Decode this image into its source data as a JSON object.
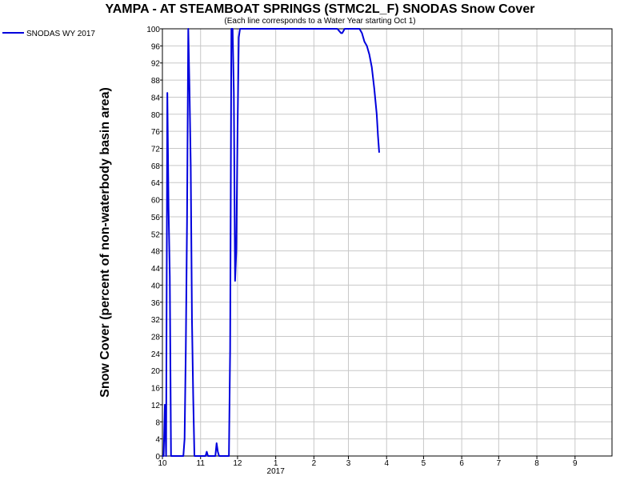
{
  "chart_data": {
    "type": "line",
    "title": "YAMPA - AT STEAMBOAT SPRINGS (STMC2L_F) SNODAS Snow Cover",
    "subtitle": "(Each line corresponds to a Water Year starting Oct 1)",
    "ylabel": "Snow Cover (percent of non-waterbody basin area)",
    "xlabel": "",
    "year_label": "2017",
    "ylim": [
      0,
      100
    ],
    "y_ticks": [
      0,
      4,
      8,
      12,
      16,
      20,
      24,
      28,
      32,
      36,
      40,
      44,
      48,
      52,
      56,
      60,
      64,
      68,
      72,
      76,
      80,
      84,
      88,
      92,
      96,
      100
    ],
    "xlim": [
      "2016-10-01",
      "2017-10-01"
    ],
    "x_ticks": [
      {
        "date": "2016-10-01",
        "label": "10"
      },
      {
        "date": "2016-11-01",
        "label": "11"
      },
      {
        "date": "2016-12-01",
        "label": "12"
      },
      {
        "date": "2017-01-01",
        "label": "1"
      },
      {
        "date": "2017-02-01",
        "label": "2"
      },
      {
        "date": "2017-03-01",
        "label": "3"
      },
      {
        "date": "2017-04-01",
        "label": "4"
      },
      {
        "date": "2017-05-01",
        "label": "5"
      },
      {
        "date": "2017-06-01",
        "label": "6"
      },
      {
        "date": "2017-07-01",
        "label": "7"
      },
      {
        "date": "2017-08-01",
        "label": "8"
      },
      {
        "date": "2017-09-01",
        "label": "9"
      }
    ],
    "grid": true,
    "legend_position": "top-left",
    "colors": {
      "series": "#0000dd",
      "grid": "#c8c8c8",
      "axis": "#000000"
    },
    "series": [
      {
        "name": "SNODAS WY 2017",
        "points": [
          [
            "2016-10-01",
            0
          ],
          [
            "2016-10-02",
            0
          ],
          [
            "2016-10-03",
            12
          ],
          [
            "2016-10-04",
            0
          ],
          [
            "2016-10-05",
            85
          ],
          [
            "2016-10-06",
            58
          ],
          [
            "2016-10-07",
            42
          ],
          [
            "2016-10-08",
            0
          ],
          [
            "2016-10-09",
            0
          ],
          [
            "2016-10-10",
            0
          ],
          [
            "2016-10-11",
            0
          ],
          [
            "2016-10-12",
            0
          ],
          [
            "2016-10-13",
            0
          ],
          [
            "2016-10-14",
            0
          ],
          [
            "2016-10-15",
            0
          ],
          [
            "2016-10-16",
            0
          ],
          [
            "2016-10-17",
            0
          ],
          [
            "2016-10-18",
            0
          ],
          [
            "2016-10-19",
            4
          ],
          [
            "2016-10-20",
            25
          ],
          [
            "2016-10-21",
            55
          ],
          [
            "2016-10-22",
            100
          ],
          [
            "2016-10-23",
            86
          ],
          [
            "2016-10-24",
            68
          ],
          [
            "2016-10-25",
            32
          ],
          [
            "2016-10-26",
            14
          ],
          [
            "2016-10-27",
            0
          ],
          [
            "2016-10-28",
            0
          ],
          [
            "2016-11-05",
            0
          ],
          [
            "2016-11-06",
            1
          ],
          [
            "2016-11-07",
            0
          ],
          [
            "2016-11-08",
            0
          ],
          [
            "2016-11-09",
            0
          ],
          [
            "2016-11-10",
            0
          ],
          [
            "2016-11-11",
            0
          ],
          [
            "2016-11-12",
            0
          ],
          [
            "2016-11-13",
            0
          ],
          [
            "2016-11-14",
            3
          ],
          [
            "2016-11-15",
            1
          ],
          [
            "2016-11-16",
            0
          ],
          [
            "2016-11-17",
            0
          ],
          [
            "2016-11-18",
            0
          ],
          [
            "2016-11-19",
            0
          ],
          [
            "2016-11-20",
            0
          ],
          [
            "2016-11-21",
            0
          ],
          [
            "2016-11-22",
            0
          ],
          [
            "2016-11-23",
            0
          ],
          [
            "2016-11-24",
            0
          ],
          [
            "2016-11-25",
            25
          ],
          [
            "2016-11-26",
            100
          ],
          [
            "2016-11-27",
            100
          ],
          [
            "2016-11-28",
            85
          ],
          [
            "2016-11-29",
            41
          ],
          [
            "2016-11-30",
            48
          ],
          [
            "2016-12-01",
            76
          ],
          [
            "2016-12-02",
            98
          ],
          [
            "2016-12-03",
            100
          ],
          [
            "2016-12-04",
            100
          ],
          [
            "2016-12-15",
            100
          ],
          [
            "2017-01-01",
            100
          ],
          [
            "2017-02-01",
            100
          ],
          [
            "2017-02-20",
            100
          ],
          [
            "2017-02-23",
            99
          ],
          [
            "2017-02-24",
            99
          ],
          [
            "2017-02-26",
            100
          ],
          [
            "2017-03-05",
            100
          ],
          [
            "2017-03-10",
            100
          ],
          [
            "2017-03-12",
            99
          ],
          [
            "2017-03-14",
            97
          ],
          [
            "2017-03-16",
            96
          ],
          [
            "2017-03-18",
            94
          ],
          [
            "2017-03-20",
            91
          ],
          [
            "2017-03-22",
            86
          ],
          [
            "2017-03-23",
            83
          ],
          [
            "2017-03-24",
            80
          ],
          [
            "2017-03-25",
            75
          ],
          [
            "2017-03-26",
            71
          ]
        ]
      }
    ]
  }
}
